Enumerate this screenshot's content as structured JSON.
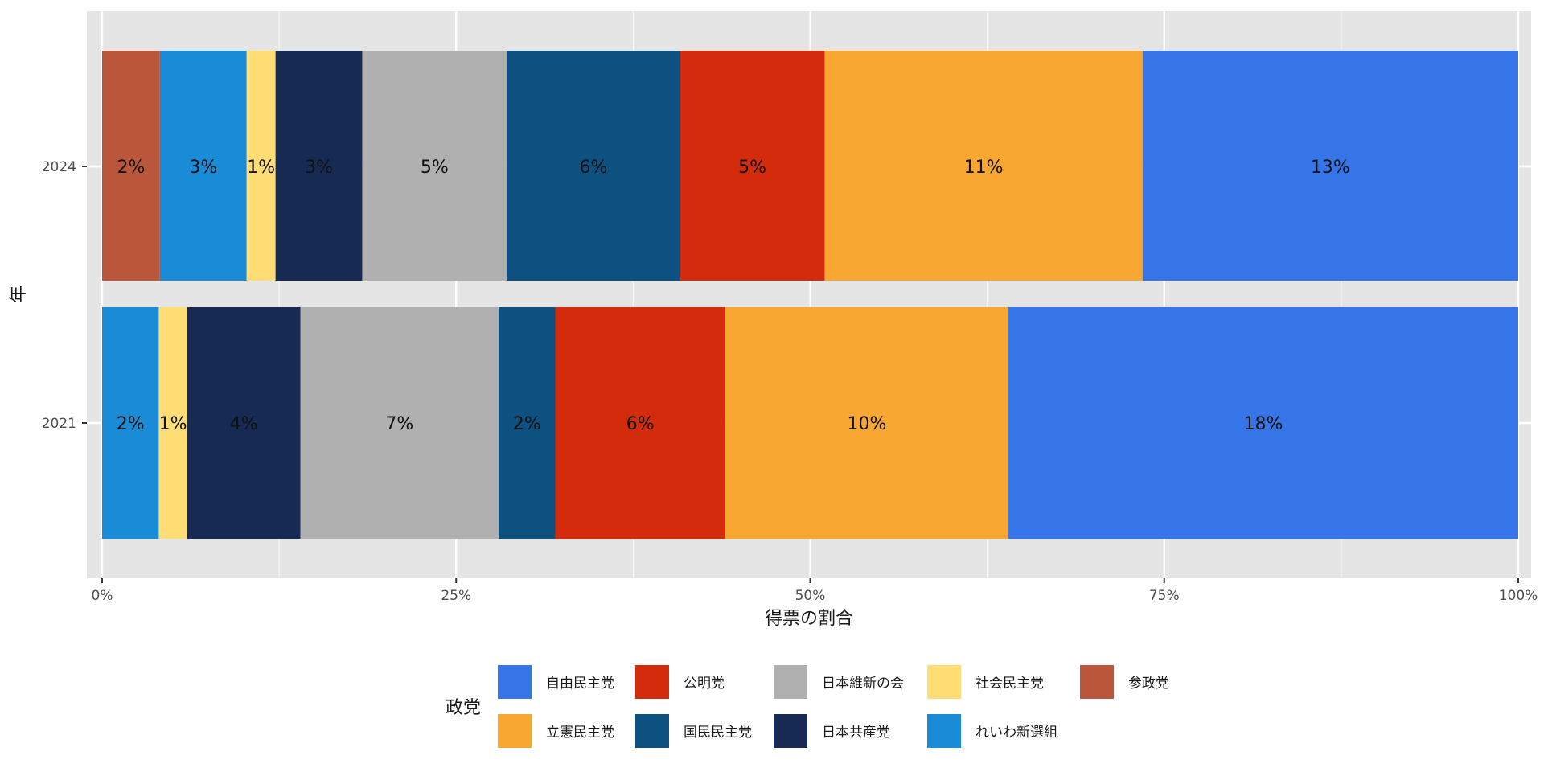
{
  "chart_data": {
    "type": "bar",
    "orientation": "horizontal",
    "stacked": true,
    "title": "",
    "xlabel": "得票の割合",
    "ylabel": "年",
    "xlim": [
      0,
      1
    ],
    "x_ticks": [
      "0%",
      "25%",
      "50%",
      "75%",
      "100%"
    ],
    "x_tick_values": [
      0,
      0.25,
      0.5,
      0.75,
      1.0
    ],
    "grid": true,
    "categories": [
      "2024",
      "2021"
    ],
    "legend": {
      "title": "政党",
      "placement": "bottom",
      "items": [
        {
          "name": "自由民主党",
          "color": "#3575E8"
        },
        {
          "name": "立憲民主党",
          "color": "#F8A733"
        },
        {
          "name": "公明党",
          "color": "#D42B0D"
        },
        {
          "name": "国民民主党",
          "color": "#0D5180"
        },
        {
          "name": "日本維新の会",
          "color": "#B0B0B0"
        },
        {
          "name": "日本共産党",
          "color": "#172A53"
        },
        {
          "name": "社会民主党",
          "color": "#FEDD75"
        },
        {
          "name": "れいわ新選組",
          "color": "#1A8BD6"
        },
        {
          "name": "参政党",
          "color": "#BA573B"
        }
      ]
    },
    "stack_order": [
      "参政党",
      "れいわ新選組",
      "社会民主党",
      "日本共産党",
      "日本維新の会",
      "国民民主党",
      "公明党",
      "立憲民主党",
      "自由民主党"
    ],
    "bars": [
      {
        "year": "2024",
        "segments": [
          {
            "party": "参政党",
            "share": 2,
            "label": "2%"
          },
          {
            "party": "れいわ新選組",
            "share": 3,
            "label": "3%"
          },
          {
            "party": "社会民主党",
            "share": 1,
            "label": "1%"
          },
          {
            "party": "日本共産党",
            "share": 3,
            "label": "3%"
          },
          {
            "party": "日本維新の会",
            "share": 5,
            "label": "5%"
          },
          {
            "party": "国民民主党",
            "share": 6,
            "label": "6%"
          },
          {
            "party": "公明党",
            "share": 5,
            "label": "5%"
          },
          {
            "party": "立憲民主党",
            "share": 11,
            "label": "11%"
          },
          {
            "party": "自由民主党",
            "share": 13,
            "label": "13%"
          }
        ]
      },
      {
        "year": "2021",
        "segments": [
          {
            "party": "れいわ新選組",
            "share": 2,
            "label": "2%"
          },
          {
            "party": "社会民主党",
            "share": 1,
            "label": "1%"
          },
          {
            "party": "日本共産党",
            "share": 4,
            "label": "4%"
          },
          {
            "party": "日本維新の会",
            "share": 7,
            "label": "7%"
          },
          {
            "party": "国民民主党",
            "share": 2,
            "label": "2%"
          },
          {
            "party": "公明党",
            "share": 6,
            "label": "6%"
          },
          {
            "party": "立憲民主党",
            "share": 10,
            "label": "10%"
          },
          {
            "party": "自由民主党",
            "share": 18,
            "label": "18%"
          }
        ]
      }
    ]
  }
}
